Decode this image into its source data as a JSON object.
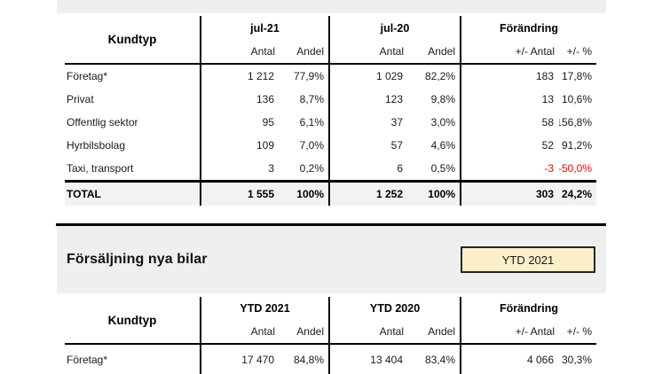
{
  "colors": {
    "band_bg": "#efefef",
    "total_row_bg": "#f2f2f2",
    "badge_bg": "#fbefc9",
    "badge_border": "#262626",
    "negative_text": "#ff0000",
    "rule_line": "#000000"
  },
  "section_sales": {
    "title": "Försäljning nya bilar",
    "period_badge": "YTD 2021"
  },
  "table_monthly": {
    "corner_label": "Kundtyp",
    "groups": [
      {
        "label": "jul-21",
        "subcolumns": [
          "Antal",
          "Andel"
        ]
      },
      {
        "label": "jul-20",
        "subcolumns": [
          "Antal",
          "Andel"
        ]
      },
      {
        "label": "Förändring",
        "subcolumns": [
          "+/- Antal",
          "+/- %"
        ]
      }
    ],
    "rows": [
      {
        "label": "Företag*",
        "values": [
          "1 212",
          "77,9%",
          "1 029",
          "82,2%",
          "183",
          "17,8%"
        ]
      },
      {
        "label": "Privat",
        "values": [
          "136",
          "8,7%",
          "123",
          "9,8%",
          "13",
          "10,6%"
        ]
      },
      {
        "label": "Offentlig sektor",
        "values": [
          "95",
          "6,1%",
          "37",
          "3,0%",
          "58",
          "156,8%"
        ]
      },
      {
        "label": "Hyrbilsbolag",
        "values": [
          "109",
          "7,0%",
          "57",
          "4,6%",
          "52",
          "91,2%"
        ]
      },
      {
        "label": "Taxi, transport",
        "values": [
          "3",
          "0,2%",
          "6",
          "0,5%",
          "-3",
          "-50,0%"
        ]
      }
    ],
    "total_row": {
      "label": "TOTAL",
      "values": [
        "1 555",
        "100%",
        "1 252",
        "100%",
        "303",
        "24,2%"
      ]
    }
  },
  "table_ytd": {
    "corner_label": "Kundtyp",
    "groups": [
      {
        "label": "YTD 2021",
        "subcolumns": [
          "Antal",
          "Andel"
        ]
      },
      {
        "label": "YTD 2020",
        "subcolumns": [
          "Antal",
          "Andel"
        ]
      },
      {
        "label": "Förändring",
        "subcolumns": [
          "+/- Antal",
          "+/- %"
        ]
      }
    ],
    "rows": [
      {
        "label": "Företag*",
        "values": [
          "17 470",
          "84,8%",
          "13 404",
          "83,4%",
          "4 066",
          "30,3%"
        ]
      }
    ]
  }
}
